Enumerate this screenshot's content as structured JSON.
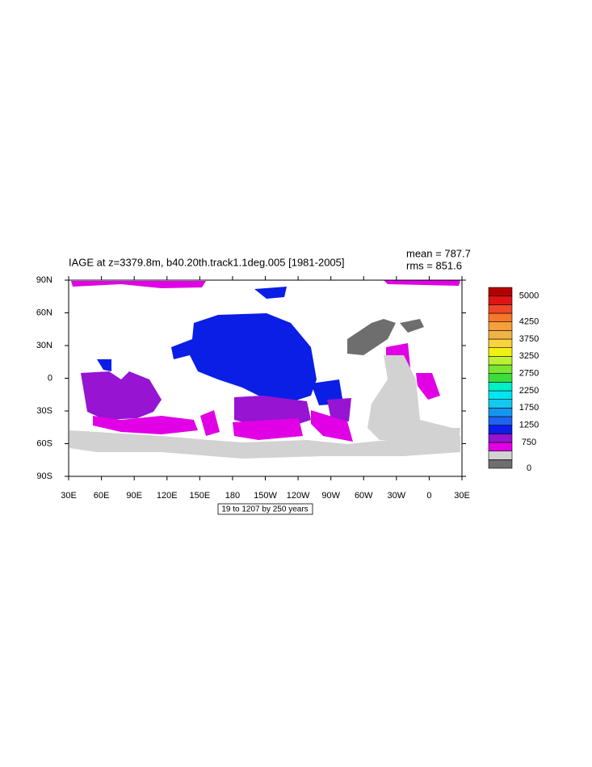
{
  "title": "IAGE at z=3379.8m, b40.20th.track1.1deg.005 [1981-2005]",
  "stats": [
    "mean = 787.7",
    "rms = 851.6"
  ],
  "lat_labels": [
    "90N",
    "60N",
    "30N",
    "0",
    "30S",
    "60S",
    "90S"
  ],
  "lon_labels": [
    "30E",
    "60E",
    "90E",
    "120E",
    "150E",
    "180",
    "150W",
    "120W",
    "90W",
    "60W",
    "30W",
    "0",
    "30E"
  ],
  "footer": "19 to 1207 by 250 years",
  "colorbar": {
    "colors": [
      "#6e6e6e",
      "#d2d2d2",
      "#e100e6",
      "#9614d2",
      "#0a1ee6",
      "#1e64f0",
      "#1496f0",
      "#14c8f0",
      "#00e6f0",
      "#00f0c8",
      "#3cdc3c",
      "#78e632",
      "#bef032",
      "#f0f014",
      "#fad23c",
      "#f0b446",
      "#f5a03c",
      "#f57828",
      "#f04628",
      "#dc1414",
      "#b40000"
    ],
    "labels": [
      "0",
      "750",
      "1250",
      "1750",
      "2250",
      "2750",
      "3250",
      "3750",
      "4250",
      "5000"
    ],
    "label_positions": [
      0,
      3,
      5,
      7,
      9,
      11,
      13,
      15,
      17,
      20
    ]
  }
}
